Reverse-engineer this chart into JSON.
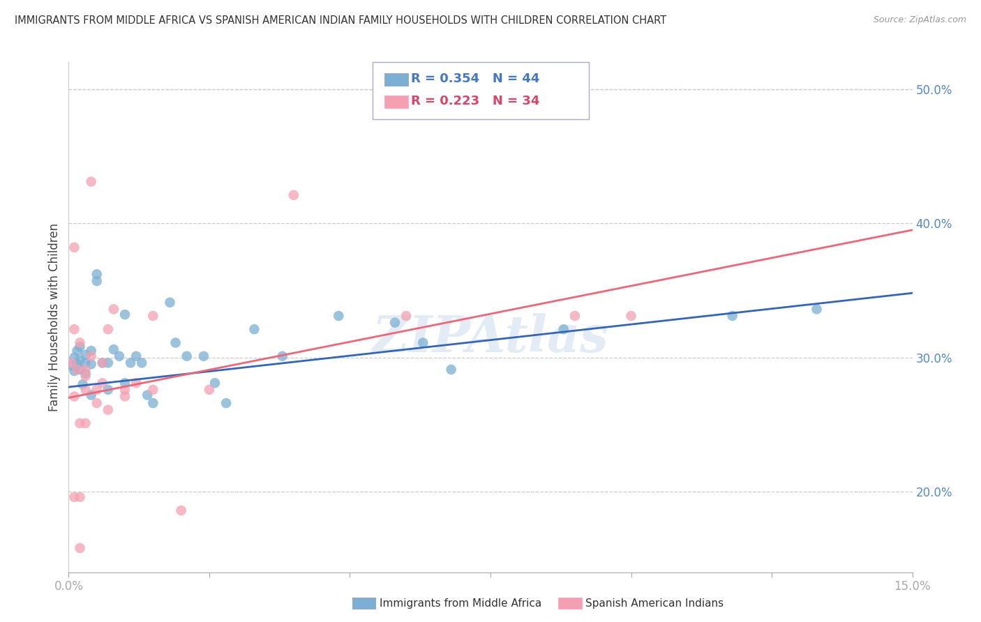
{
  "title": "IMMIGRANTS FROM MIDDLE AFRICA VS SPANISH AMERICAN INDIAN FAMILY HOUSEHOLDS WITH CHILDREN CORRELATION CHART",
  "source": "Source: ZipAtlas.com",
  "ylabel_label": "Family Households with Children",
  "legend1_label": "Immigrants from Middle Africa",
  "legend2_label": "Spanish American Indians",
  "r1": 0.354,
  "n1": 44,
  "r2": 0.223,
  "n2": 34,
  "color_blue": "#7BAFD4",
  "color_pink": "#F4A0B0",
  "color_blue_line": "#3366BB",
  "color_pink_line": "#EE6677",
  "watermark": "ZIPAtlas",
  "xlim": [
    0.0,
    0.15
  ],
  "ylim": [
    0.14,
    0.52
  ],
  "x_ticks": [
    0.0,
    0.025,
    0.05,
    0.075,
    0.1,
    0.125,
    0.15
  ],
  "y_ticks_right": [
    0.2,
    0.3,
    0.4,
    0.5
  ],
  "blue_points": [
    [
      0.0005,
      0.294
    ],
    [
      0.001,
      0.29
    ],
    [
      0.001,
      0.3
    ],
    [
      0.0015,
      0.295
    ],
    [
      0.0015,
      0.305
    ],
    [
      0.002,
      0.291
    ],
    [
      0.002,
      0.298
    ],
    [
      0.002,
      0.308
    ],
    [
      0.0025,
      0.28
    ],
    [
      0.003,
      0.296
    ],
    [
      0.003,
      0.302
    ],
    [
      0.003,
      0.288
    ],
    [
      0.004,
      0.295
    ],
    [
      0.004,
      0.305
    ],
    [
      0.004,
      0.272
    ],
    [
      0.005,
      0.357
    ],
    [
      0.005,
      0.362
    ],
    [
      0.006,
      0.296
    ],
    [
      0.007,
      0.276
    ],
    [
      0.007,
      0.296
    ],
    [
      0.008,
      0.306
    ],
    [
      0.009,
      0.301
    ],
    [
      0.01,
      0.281
    ],
    [
      0.01,
      0.332
    ],
    [
      0.011,
      0.296
    ],
    [
      0.012,
      0.301
    ],
    [
      0.013,
      0.296
    ],
    [
      0.014,
      0.272
    ],
    [
      0.015,
      0.266
    ],
    [
      0.018,
      0.341
    ],
    [
      0.019,
      0.311
    ],
    [
      0.021,
      0.301
    ],
    [
      0.024,
      0.301
    ],
    [
      0.026,
      0.281
    ],
    [
      0.028,
      0.266
    ],
    [
      0.033,
      0.321
    ],
    [
      0.038,
      0.301
    ],
    [
      0.048,
      0.331
    ],
    [
      0.058,
      0.326
    ],
    [
      0.063,
      0.311
    ],
    [
      0.068,
      0.291
    ],
    [
      0.088,
      0.321
    ],
    [
      0.118,
      0.331
    ],
    [
      0.133,
      0.336
    ]
  ],
  "pink_points": [
    [
      0.0005,
      0.296
    ],
    [
      0.001,
      0.271
    ],
    [
      0.001,
      0.321
    ],
    [
      0.001,
      0.382
    ],
    [
      0.001,
      0.196
    ],
    [
      0.0015,
      0.291
    ],
    [
      0.002,
      0.311
    ],
    [
      0.002,
      0.251
    ],
    [
      0.002,
      0.196
    ],
    [
      0.002,
      0.158
    ],
    [
      0.003,
      0.291
    ],
    [
      0.003,
      0.286
    ],
    [
      0.003,
      0.276
    ],
    [
      0.003,
      0.251
    ],
    [
      0.004,
      0.301
    ],
    [
      0.004,
      0.431
    ],
    [
      0.005,
      0.276
    ],
    [
      0.005,
      0.266
    ],
    [
      0.006,
      0.281
    ],
    [
      0.006,
      0.296
    ],
    [
      0.007,
      0.321
    ],
    [
      0.007,
      0.261
    ],
    [
      0.008,
      0.336
    ],
    [
      0.01,
      0.276
    ],
    [
      0.01,
      0.271
    ],
    [
      0.012,
      0.281
    ],
    [
      0.015,
      0.331
    ],
    [
      0.015,
      0.276
    ],
    [
      0.02,
      0.186
    ],
    [
      0.025,
      0.276
    ],
    [
      0.04,
      0.421
    ],
    [
      0.06,
      0.331
    ],
    [
      0.09,
      0.331
    ],
    [
      0.1,
      0.331
    ]
  ],
  "blue_line_y0": 0.278,
  "blue_line_y1": 0.348,
  "pink_line_y0": 0.27,
  "pink_line_y1": 0.395
}
